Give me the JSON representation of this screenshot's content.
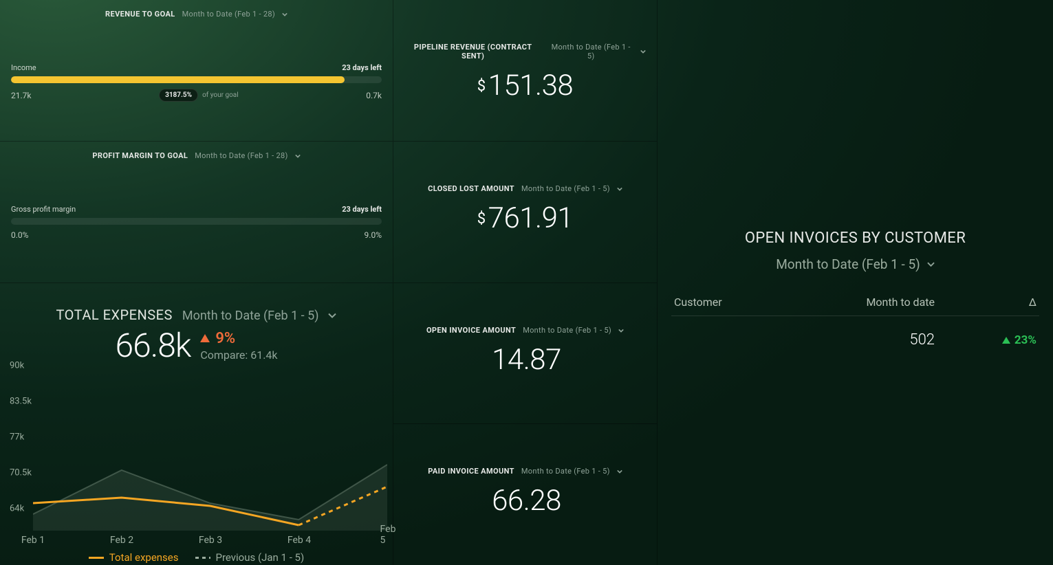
{
  "colors": {
    "accent_orange": "#f5a623",
    "delta_red": "#ef6b3a",
    "delta_green": "#2bbf55",
    "bar_yellow": "#f4c531",
    "muted": "#8fa398",
    "text": "#e6e8e6",
    "track": "rgba(255,255,255,0.08)"
  },
  "revenue_goal": {
    "title": "REVENUE TO GOAL",
    "range": "Month to Date (Feb 1 - 28)",
    "metric_label": "Income",
    "days_left": "23 days left",
    "current": "21.7k",
    "goal": "0.7k",
    "pill": "3187.5%",
    "pill_suffix": "of your goal",
    "fill_pct": 90,
    "fill_color": "#f4c531"
  },
  "profit_goal": {
    "title": "PROFIT MARGIN TO GOAL",
    "range": "Month to Date (Feb 1 - 28)",
    "metric_label": "Gross profit margin",
    "days_left": "23 days left",
    "current": "0.0%",
    "goal": "9.0%",
    "fill_pct": 0,
    "fill_color": "#f4c531"
  },
  "stats": {
    "pipeline": {
      "title": "PIPELINE REVENUE (CONTRACT SENT)",
      "range": "Month to Date (Feb 1 - 5)",
      "currency": "$",
      "value": "151.38"
    },
    "closedlost": {
      "title": "CLOSED LOST AMOUNT",
      "range": "Month to Date (Feb 1 - 5)",
      "currency": "$",
      "value": "761.91"
    },
    "openinv": {
      "title": "OPEN INVOICE AMOUNT",
      "range": "Month to Date (Feb 1 - 5)",
      "currency": "",
      "value": "14.87"
    },
    "paidinv": {
      "title": "PAID INVOICE AMOUNT",
      "range": "Month to Date (Feb 1 - 5)",
      "currency": "",
      "value": "66.28"
    }
  },
  "expenses": {
    "title": "TOTAL EXPENSES",
    "range": "Month to Date (Feb 1 - 5)",
    "value": "66.8k",
    "delta": "9%",
    "delta_dir": "up",
    "delta_color": "#ef6b3a",
    "compare": "Compare: 61.4k",
    "legend_current": "Total expenses",
    "legend_previous": "Previous (Jan 1 - 5)",
    "chart": {
      "type": "line",
      "x_labels": [
        "Feb 1",
        "Feb 2",
        "Feb 3",
        "Feb 4",
        "Feb 5"
      ],
      "y_ticks": [
        64,
        70.5,
        77,
        83.5,
        90
      ],
      "y_tick_labels": [
        "64k",
        "70.5k",
        "77k",
        "83.5k",
        "90k"
      ],
      "ylim": [
        60,
        90
      ],
      "series_current": {
        "color": "#f5a623",
        "width": 3,
        "values": [
          65,
          66,
          64.5,
          61,
          68
        ],
        "dashed_after_index": 3
      },
      "series_previous": {
        "color": "#6e8474",
        "width": 2,
        "values": [
          63,
          71,
          65,
          62,
          72
        ],
        "area_fill": "rgba(110,132,116,0.18)"
      }
    }
  },
  "open_invoices": {
    "title": "OPEN INVOICES BY CUSTOMER",
    "range": "Month to Date (Feb 1 - 5)",
    "columns": [
      "Customer",
      "Month to date",
      "Δ"
    ],
    "rows": [
      {
        "customer": "",
        "value": "502",
        "delta": "23%",
        "delta_dir": "up",
        "delta_color": "#2bbf55"
      }
    ]
  }
}
